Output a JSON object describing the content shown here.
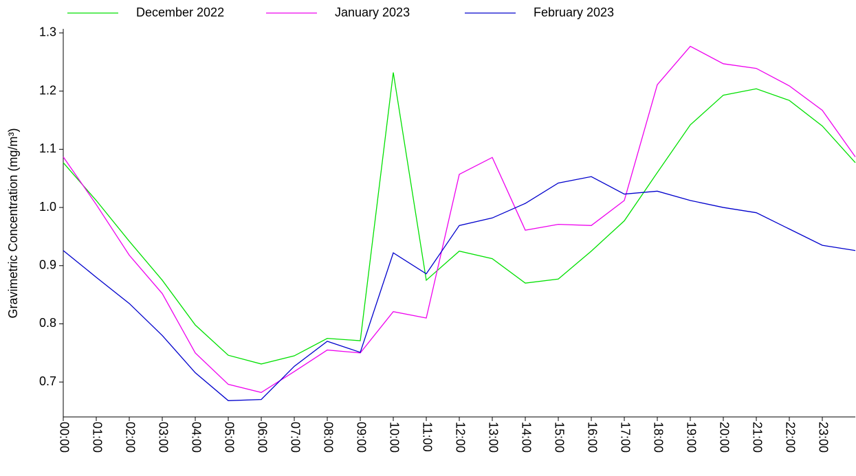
{
  "chart_data": {
    "type": "line",
    "y_label": "Gravimetric Concentration (mg/m³)",
    "categories": [
      "00:00",
      "01:00",
      "02:00",
      "03:00",
      "04:00",
      "05:00",
      "06:00",
      "07:00",
      "08:00",
      "09:00",
      "10:00",
      "11:00",
      "12:00",
      "13:00",
      "14:00",
      "15:00",
      "16:00",
      "17:00",
      "18:00",
      "19:00",
      "20:00",
      "21:00",
      "22:00",
      "23:00",
      null
    ],
    "series": [
      {
        "name": "December 2022",
        "color": "#00e000",
        "values": [
          1.077,
          1.012,
          0.942,
          0.875,
          0.798,
          0.746,
          0.731,
          0.745,
          0.775,
          0.771,
          1.232,
          0.875,
          0.925,
          0.912,
          0.87,
          0.877,
          0.925,
          0.977,
          1.06,
          1.142,
          1.193,
          1.204,
          1.184,
          1.14,
          1.077
        ]
      },
      {
        "name": "January 2023",
        "color": "#ee00ee",
        "values": [
          1.087,
          1.005,
          0.918,
          0.852,
          0.75,
          0.696,
          0.682,
          0.718,
          0.755,
          0.75,
          0.821,
          0.81,
          1.057,
          1.086,
          0.961,
          0.971,
          0.969,
          1.012,
          1.211,
          1.277,
          1.247,
          1.239,
          1.209,
          1.167,
          1.087
        ]
      },
      {
        "name": "February 2023",
        "color": "#0000cc",
        "values": [
          0.926,
          0.88,
          0.835,
          0.78,
          0.716,
          0.668,
          0.67,
          0.727,
          0.77,
          0.751,
          0.922,
          0.886,
          0.969,
          0.982,
          1.007,
          1.042,
          1.053,
          1.023,
          1.028,
          1.012,
          1.0,
          0.991,
          0.963,
          0.935,
          0.926
        ]
      }
    ],
    "ylim": [
      0.64,
      1.307
    ],
    "yticks": [
      0.7,
      0.8,
      0.9,
      {
        "value": 1,
        "label": "1.0"
      },
      1.1,
      1.2,
      1.3
    ],
    "legend": "top"
  }
}
